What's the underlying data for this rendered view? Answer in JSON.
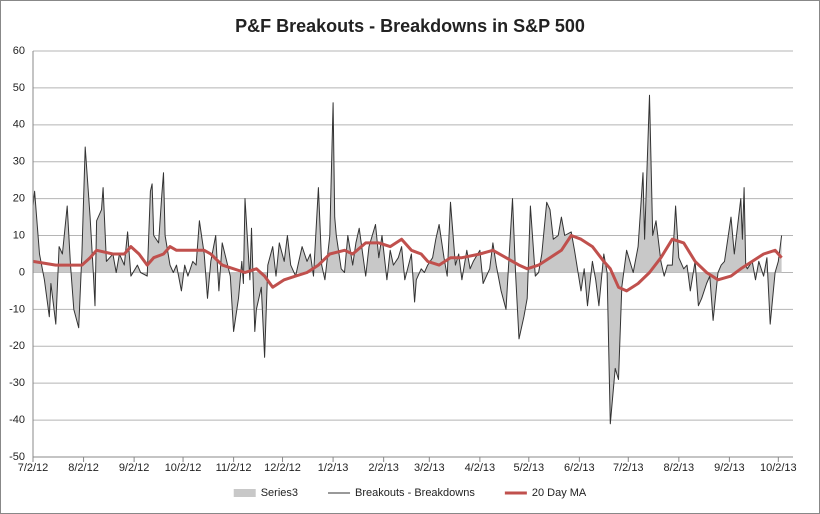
{
  "chart_data": {
    "type": "line",
    "title": "P&F Breakouts - Breakdowns in S&P 500",
    "xlim": [
      "7/2/12",
      "10/11/13"
    ],
    "xticks": [
      "7/2/12",
      "8/2/12",
      "9/2/12",
      "10/2/12",
      "11/2/12",
      "12/2/12",
      "1/2/13",
      "2/2/13",
      "3/2/13",
      "4/2/13",
      "5/2/13",
      "6/2/13",
      "7/2/13",
      "8/2/13",
      "9/2/13",
      "10/2/13"
    ],
    "ylim": [
      -50,
      60
    ],
    "yticks": [
      -50,
      -40,
      -30,
      -20,
      -10,
      0,
      10,
      20,
      30,
      40,
      50,
      60
    ],
    "grid": true,
    "legend": "bottom",
    "x": [
      "7/2/12",
      "7/3/12",
      "7/6/12",
      "7/9/12",
      "7/12/12",
      "7/13/12",
      "7/16/12",
      "7/18/12",
      "7/20/12",
      "7/23/12",
      "7/25/12",
      "7/27/12",
      "7/30/12",
      "8/1/12",
      "8/3/12",
      "8/6/12",
      "8/8/12",
      "8/9/12",
      "8/10/12",
      "8/13/12",
      "8/14/12",
      "8/16/12",
      "8/20/12",
      "8/22/12",
      "8/24/12",
      "8/27/12",
      "8/29/12",
      "8/31/12",
      "9/4/12",
      "9/6/12",
      "9/10/12",
      "9/12/12",
      "9/13/12",
      "9/14/12",
      "9/17/12",
      "9/19/12",
      "9/20/12",
      "9/21/12",
      "9/24/12",
      "9/26/12",
      "9/28/12",
      "10/1/12",
      "10/3/12",
      "10/5/12",
      "10/8/12",
      "10/10/12",
      "10/12/12",
      "10/15/12",
      "10/17/12",
      "10/19/12",
      "10/22/12",
      "10/24/12",
      "10/26/12",
      "10/31/12",
      "11/2/12",
      "11/5/12",
      "11/7/12",
      "11/8/12",
      "11/9/12",
      "11/12/12",
      "11/13/12",
      "11/15/12",
      "11/16/12",
      "11/19/12",
      "11/21/12",
      "11/23/12",
      "11/26/12",
      "11/28/12",
      "11/30/12",
      "12/3/12",
      "12/5/12",
      "12/7/12",
      "12/10/12",
      "12/12/12",
      "12/14/12",
      "12/17/12",
      "12/19/12",
      "12/21/12",
      "12/24/12",
      "12/26/12",
      "12/28/12",
      "12/31/12",
      "1/2/13",
      "1/3/13",
      "1/4/13",
      "1/7/13",
      "1/9/13",
      "1/11/13",
      "1/14/13",
      "1/16/13",
      "1/18/13",
      "1/22/13",
      "1/24/13",
      "1/28/13",
      "1/30/13",
      "2/1/13",
      "2/4/13",
      "2/6/13",
      "2/8/13",
      "2/11/13",
      "2/13/13",
      "2/15/13",
      "2/19/13",
      "2/21/13",
      "2/22/13",
      "2/25/13",
      "2/27/13",
      "3/1/13",
      "3/4/13",
      "3/6/13",
      "3/8/13",
      "3/11/13",
      "3/13/13",
      "3/15/13",
      "3/18/13",
      "3/20/13",
      "3/22/13",
      "3/25/13",
      "3/27/13",
      "3/29/13",
      "4/2/13",
      "4/4/13",
      "4/8/13",
      "4/10/13",
      "4/12/13",
      "4/15/13",
      "4/18/13",
      "4/22/13",
      "4/24/13",
      "4/26/13",
      "4/29/13",
      "5/1/13",
      "5/3/13",
      "5/6/13",
      "5/8/13",
      "5/10/13",
      "5/13/13",
      "5/15/13",
      "5/17/13",
      "5/20/13",
      "5/22/13",
      "5/24/13",
      "5/28/13",
      "5/30/13",
      "6/3/13",
      "6/5/13",
      "6/7/13",
      "6/10/13",
      "6/12/13",
      "6/14/13",
      "6/17/13",
      "6/19/13",
      "6/21/13",
      "6/24/13",
      "6/26/13",
      "6/28/13",
      "7/1/13",
      "7/3/13",
      "7/5/13",
      "7/8/13",
      "7/10/13",
      "7/11/13",
      "7/12/13",
      "7/15/13",
      "7/17/13",
      "7/19/13",
      "7/22/13",
      "7/24/13",
      "7/26/13",
      "7/29/13",
      "7/31/13",
      "8/2/13",
      "8/5/13",
      "8/7/13",
      "8/9/13",
      "8/12/13",
      "8/14/13",
      "8/16/13",
      "8/19/13",
      "8/21/13",
      "8/23/13",
      "8/26/13",
      "8/28/13",
      "8/30/13",
      "9/3/13",
      "9/5/13",
      "9/9/13",
      "9/10/13",
      "9/11/13",
      "9/12/13",
      "9/13/13",
      "9/16/13",
      "9/18/13",
      "9/20/13",
      "9/23/13",
      "9/25/13",
      "9/27/13",
      "9/30/13",
      "10/2/13",
      "10/4/13"
    ],
    "series": [
      {
        "name": "Series3",
        "type": "area",
        "color": "#c8c8c8",
        "values": [
          18,
          22,
          5,
          -2,
          -12,
          -3,
          -14,
          7,
          5,
          18,
          2,
          -10,
          -15,
          5,
          34,
          15,
          0,
          -9,
          14,
          17,
          23,
          3,
          5,
          0,
          5,
          2,
          11,
          -1,
          2,
          0,
          -1,
          22,
          24,
          10,
          8,
          21,
          27,
          10,
          2,
          0,
          2,
          -5,
          2,
          -1,
          3,
          2,
          14,
          5,
          -7,
          3,
          10,
          -5,
          8,
          -1,
          -16,
          -7,
          3,
          -3,
          20,
          -2,
          12,
          -16,
          -10,
          -4,
          -23,
          2,
          7,
          -1,
          8,
          3,
          10,
          2,
          -1,
          3,
          7,
          3,
          5,
          -1,
          23,
          2,
          -2,
          10,
          46,
          15,
          10,
          1,
          0,
          10,
          2,
          8,
          12,
          -1,
          7,
          13,
          4,
          10,
          -2,
          6,
          2,
          4,
          7,
          -2,
          5,
          -8,
          -2,
          1,
          0,
          2,
          4,
          9,
          13,
          4,
          -1,
          19,
          2,
          5,
          -2,
          6,
          1,
          3,
          6,
          -3,
          1,
          8,
          2,
          -5,
          -10,
          20,
          -1,
          -18,
          -12,
          -7,
          18,
          -1,
          0,
          5,
          19,
          17,
          9,
          10,
          15,
          10,
          11,
          6,
          -5,
          1,
          -9,
          3,
          -2,
          -9,
          5,
          0,
          -41,
          -26,
          -29,
          -4,
          6,
          3,
          0,
          7,
          20,
          27,
          9,
          48,
          10,
          14,
          3,
          -1,
          2,
          2,
          18,
          4,
          1,
          2,
          -5,
          3,
          -9,
          -7,
          -3,
          -1,
          -13,
          0,
          2,
          3,
          15,
          5,
          20,
          9,
          23,
          2,
          1,
          3,
          -2,
          3,
          -1,
          4,
          -14,
          0,
          3,
          10
        ]
      },
      {
        "name": "Breakouts - Breakdowns",
        "type": "line",
        "color": "#333333",
        "values": [
          18,
          22,
          5,
          -2,
          -12,
          -3,
          -14,
          7,
          5,
          18,
          2,
          -10,
          -15,
          5,
          34,
          15,
          0,
          -9,
          14,
          17,
          23,
          3,
          5,
          0,
          5,
          2,
          11,
          -1,
          2,
          0,
          -1,
          22,
          24,
          10,
          8,
          21,
          27,
          10,
          2,
          0,
          2,
          -5,
          2,
          -1,
          3,
          2,
          14,
          5,
          -7,
          3,
          10,
          -5,
          8,
          -1,
          -16,
          -7,
          3,
          -3,
          20,
          -2,
          12,
          -16,
          -10,
          -4,
          -23,
          2,
          7,
          -1,
          8,
          3,
          10,
          2,
          -1,
          3,
          7,
          3,
          5,
          -1,
          23,
          2,
          -2,
          10,
          46,
          15,
          10,
          1,
          0,
          10,
          2,
          8,
          12,
          -1,
          7,
          13,
          4,
          10,
          -2,
          6,
          2,
          4,
          7,
          -2,
          5,
          -8,
          -2,
          1,
          0,
          2,
          4,
          9,
          13,
          4,
          -1,
          19,
          2,
          5,
          -2,
          6,
          1,
          3,
          6,
          -3,
          1,
          8,
          2,
          -5,
          -10,
          20,
          -1,
          -18,
          -12,
          -7,
          18,
          -1,
          0,
          5,
          19,
          17,
          9,
          10,
          15,
          10,
          11,
          6,
          -5,
          1,
          -9,
          3,
          -2,
          -9,
          5,
          0,
          -41,
          -26,
          -29,
          -4,
          6,
          3,
          0,
          7,
          20,
          27,
          9,
          48,
          10,
          14,
          3,
          -1,
          2,
          2,
          18,
          4,
          1,
          2,
          -5,
          3,
          -9,
          -7,
          -3,
          -1,
          -13,
          0,
          2,
          3,
          15,
          5,
          20,
          9,
          23,
          2,
          1,
          3,
          -2,
          3,
          -1,
          4,
          -14,
          0,
          3,
          10
        ]
      },
      {
        "name": "20 Day MA",
        "type": "line",
        "color": "#c0504d",
        "width": 3,
        "x": [
          "7/2/12",
          "7/16/12",
          "8/1/12",
          "8/6/12",
          "8/10/12",
          "8/20/12",
          "8/27/12",
          "8/31/12",
          "9/5/12",
          "9/10/12",
          "9/14/12",
          "9/20/12",
          "9/24/12",
          "9/28/12",
          "10/3/12",
          "10/10/12",
          "10/15/12",
          "10/19/12",
          "10/26/12",
          "11/2/12",
          "11/9/12",
          "11/16/12",
          "11/21/12",
          "11/26/12",
          "12/3/12",
          "12/10/12",
          "12/17/12",
          "12/24/12",
          "12/31/12",
          "1/9/13",
          "1/14/13",
          "1/22/13",
          "1/30/13",
          "2/6/13",
          "2/13/13",
          "2/19/13",
          "2/25/13",
          "3/1/13",
          "3/8/13",
          "3/15/13",
          "3/22/13",
          "4/2/13",
          "4/10/13",
          "4/18/13",
          "4/26/13",
          "5/1/13",
          "5/8/13",
          "5/15/13",
          "5/22/13",
          "5/28/13",
          "6/3/13",
          "6/10/13",
          "6/17/13",
          "6/21/13",
          "6/26/13",
          "7/1/13",
          "7/8/13",
          "7/15/13",
          "7/22/13",
          "7/29/13",
          "8/5/13",
          "8/12/13",
          "8/19/13",
          "8/26/13",
          "9/3/13",
          "9/9/13",
          "9/16/13",
          "9/23/13",
          "9/30/13",
          "10/4/13"
        ],
        "values": [
          3,
          2,
          2,
          4,
          6,
          5,
          5,
          7,
          5,
          2,
          4,
          5,
          7,
          6,
          6,
          6,
          6,
          5,
          2,
          1,
          0,
          1,
          -1,
          -4,
          -2,
          -1,
          0,
          2,
          5,
          6,
          5,
          8,
          8,
          7,
          9,
          6,
          5,
          3,
          2,
          4,
          4,
          5,
          6,
          4,
          2,
          1,
          2,
          4,
          6,
          10,
          9,
          7,
          3,
          1,
          -4,
          -5,
          -3,
          0,
          4,
          9,
          8,
          3,
          0,
          -2,
          -1,
          1,
          3,
          5,
          6,
          4
        ]
      }
    ]
  }
}
